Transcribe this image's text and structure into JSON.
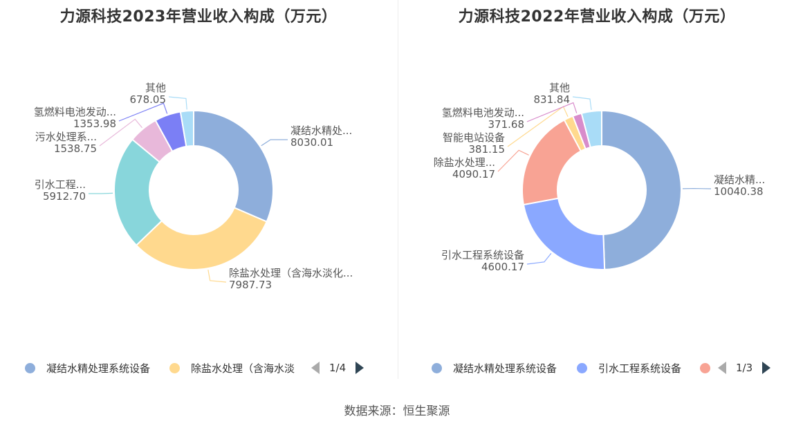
{
  "source": "数据来源：恒生聚源",
  "chart_data": [
    {
      "type": "pie",
      "donut": true,
      "title": "力源科技2023年营业收入构成（万元）",
      "unit": "万元",
      "slices": [
        {
          "name": "凝结水精处理系统设备",
          "label": "凝结水精处...",
          "value": 8030.01,
          "value_label": "8030.01",
          "color": "#8eaedb"
        },
        {
          "name": "除盐水处理（含海水淡化...",
          "label": "除盐水处理（含海水淡化...",
          "value": 7987.73,
          "value_label": "7987.73",
          "color": "#ffd98e"
        },
        {
          "name": "引水工程...",
          "label": "引水工程...",
          "value": 5912.7,
          "value_label": "5912.70",
          "color": "#88d6db"
        },
        {
          "name": "污水处理系...",
          "label": "污水处理系...",
          "value": 1538.75,
          "value_label": "1538.75",
          "color": "#e8b8da"
        },
        {
          "name": "氢燃料电池发动...",
          "label": "氢燃料电池发动...",
          "value": 1353.98,
          "value_label": "1353.98",
          "color": "#7b7ff5"
        },
        {
          "name": "其他",
          "label": "其他",
          "value": 678.05,
          "value_label": "678.05",
          "color": "#a9dcf7"
        }
      ],
      "legend": {
        "position": "bottom",
        "items": [
          {
            "label": "凝结水精处理系统设备",
            "color": "#8eaedb"
          },
          {
            "label": "除盐水处理（含海水淡",
            "color": "#ffd98e"
          }
        ],
        "page": "1/4"
      }
    },
    {
      "type": "pie",
      "donut": true,
      "title": "力源科技2022年营业收入构成（万元）",
      "unit": "万元",
      "slices": [
        {
          "name": "凝结水精处理系统设备",
          "label": "凝结水精...",
          "value": 10040.38,
          "value_label": "10040.38",
          "color": "#8eaedb"
        },
        {
          "name": "引水工程系统设备",
          "label": "引水工程系统设备",
          "value": 4600.17,
          "value_label": "4600.17",
          "color": "#8aa8ff"
        },
        {
          "name": "除盐水处理...",
          "label": "除盐水处理...",
          "value": 4090.17,
          "value_label": "4090.17",
          "color": "#f8a394"
        },
        {
          "name": "智能电站设备",
          "label": "智能电站设备",
          "value": 381.15,
          "value_label": "381.15",
          "color": "#ffd98e"
        },
        {
          "name": "氢燃料电池发动...",
          "label": "氢燃料电池发动...",
          "value": 371.68,
          "value_label": "371.68",
          "color": "#d88ccb"
        },
        {
          "name": "其他",
          "label": "其他",
          "value": 831.84,
          "value_label": "831.84",
          "color": "#a9dcf7"
        }
      ],
      "legend": {
        "position": "bottom",
        "items": [
          {
            "label": "凝结水精处理系统设备",
            "color": "#8eaedb"
          },
          {
            "label": "引水工程系统设备",
            "color": "#8aa8ff"
          },
          {
            "label": "",
            "color": "#f8a394"
          }
        ],
        "page": "1/3"
      }
    }
  ]
}
